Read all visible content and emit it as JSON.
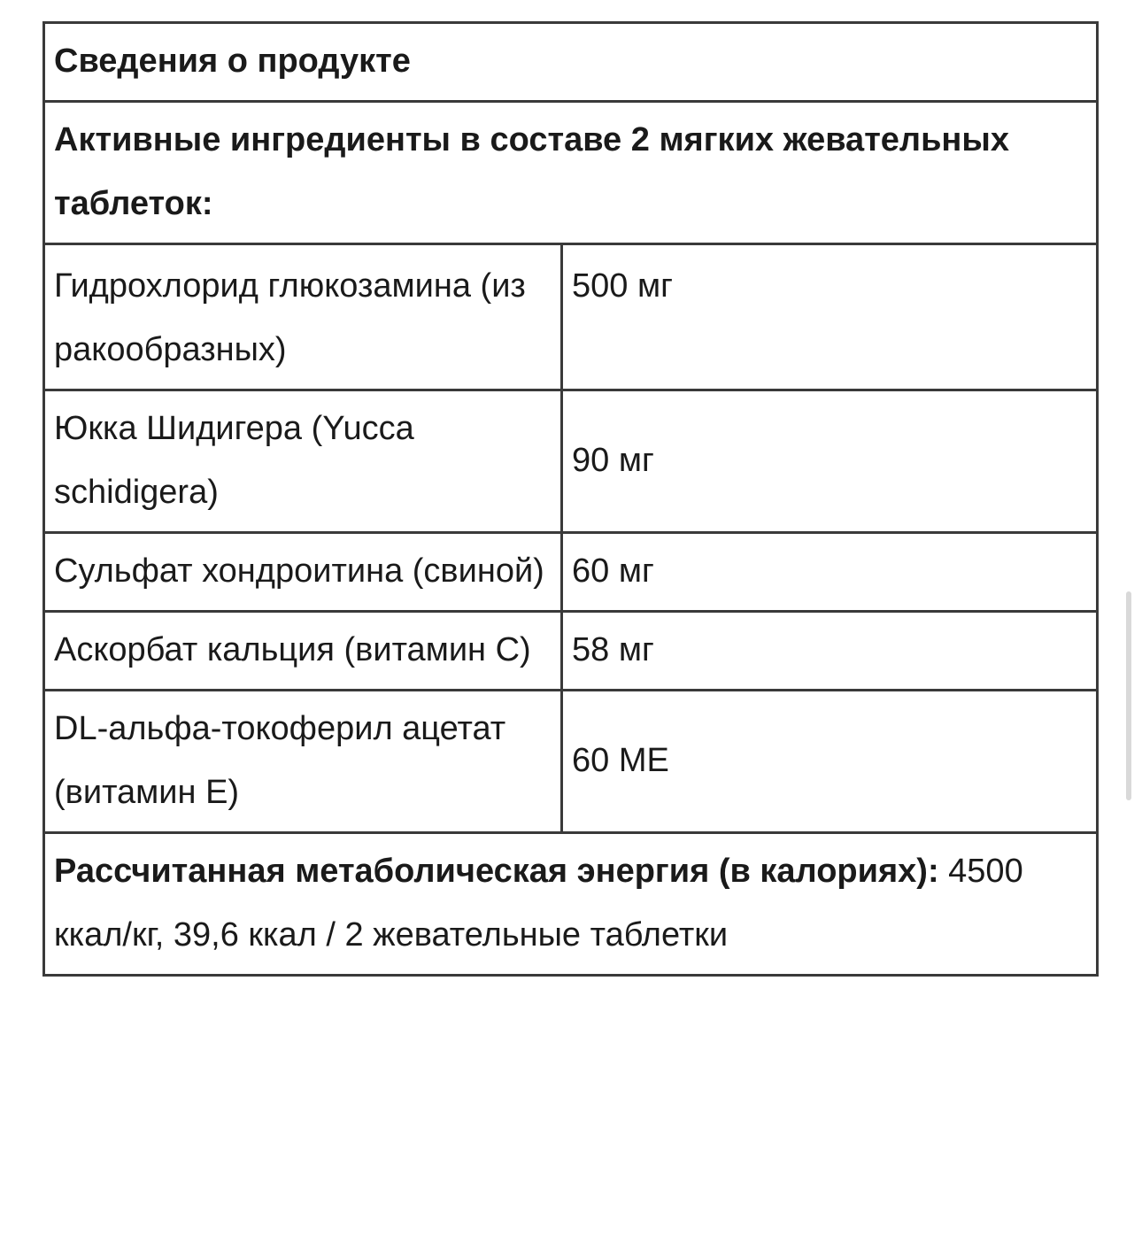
{
  "table": {
    "title": "Сведения о продукте",
    "subtitle": "Активные ингредиенты в составе 2 мягких жевательных таблеток:",
    "rows": [
      {
        "name": "Гидрохлорид глюкозамина (из ракообразных)",
        "amount": "500 мг"
      },
      {
        "name": "Юкка Шидигера (Yucca schidigera)",
        "amount": "90 мг"
      },
      {
        "name": "Сульфат хондроитина (свиной)",
        "amount": "60 мг"
      },
      {
        "name": "Аскорбат кальция (витамин С)",
        "amount": "58 мг"
      },
      {
        "name": "DL-альфа-токоферил ацетат (витамин Е)",
        "amount": "60 МЕ"
      }
    ],
    "energy_label": "Рассчитанная метаболическая энергия (в калориях):",
    "energy_value": " 4500 ккал/кг, 39,6 ккал / 2 жевательные таблетки"
  }
}
